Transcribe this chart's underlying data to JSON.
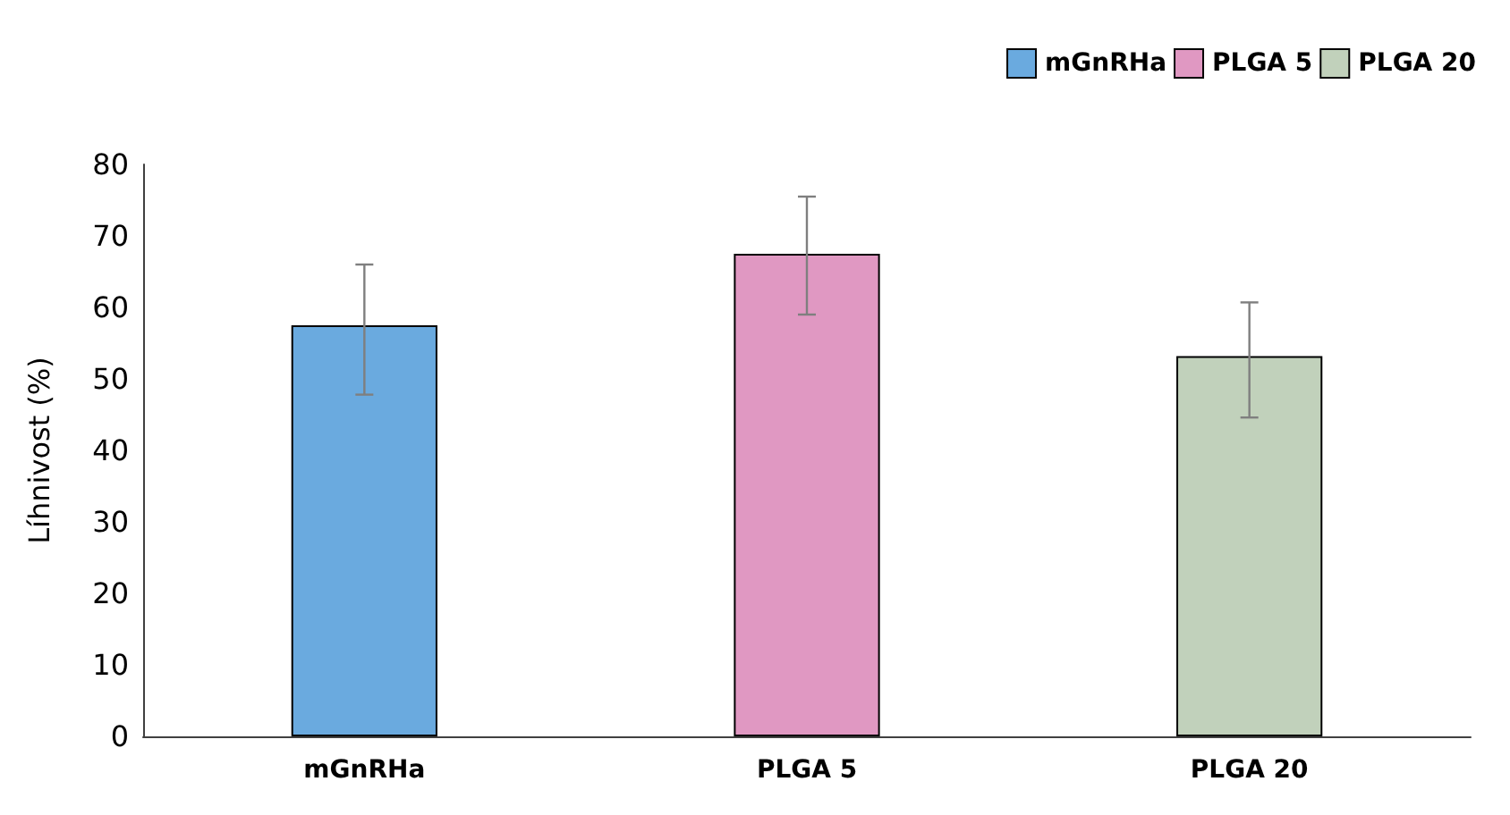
{
  "chart_data": {
    "type": "bar",
    "ylabel": "Líhnivost (%)",
    "categories": [
      "mGnRHa",
      "PLGA 5",
      "PLGA 20"
    ],
    "series": [
      {
        "name": "mGnRHa",
        "color": "#6aaadf",
        "values": [
          57.5,
          null,
          null
        ],
        "errors": [
          [
            47.8,
            66
          ],
          null,
          null
        ]
      },
      {
        "name": "PLGA 5",
        "color": "#e098c2",
        "values": [
          null,
          67.5,
          null
        ],
        "errors": [
          null,
          [
            59,
            75.5
          ],
          null
        ]
      },
      {
        "name": "PLGA 20",
        "color": "#c1d1bb",
        "values": [
          null,
          null,
          53.2
        ],
        "errors": [
          null,
          null,
          [
            44.6,
            60.7
          ]
        ]
      }
    ],
    "ylim": [
      0,
      80
    ],
    "yticks": [
      0,
      10,
      20,
      30,
      40,
      50,
      60,
      70,
      80
    ],
    "grid": false,
    "legend": "top right"
  }
}
